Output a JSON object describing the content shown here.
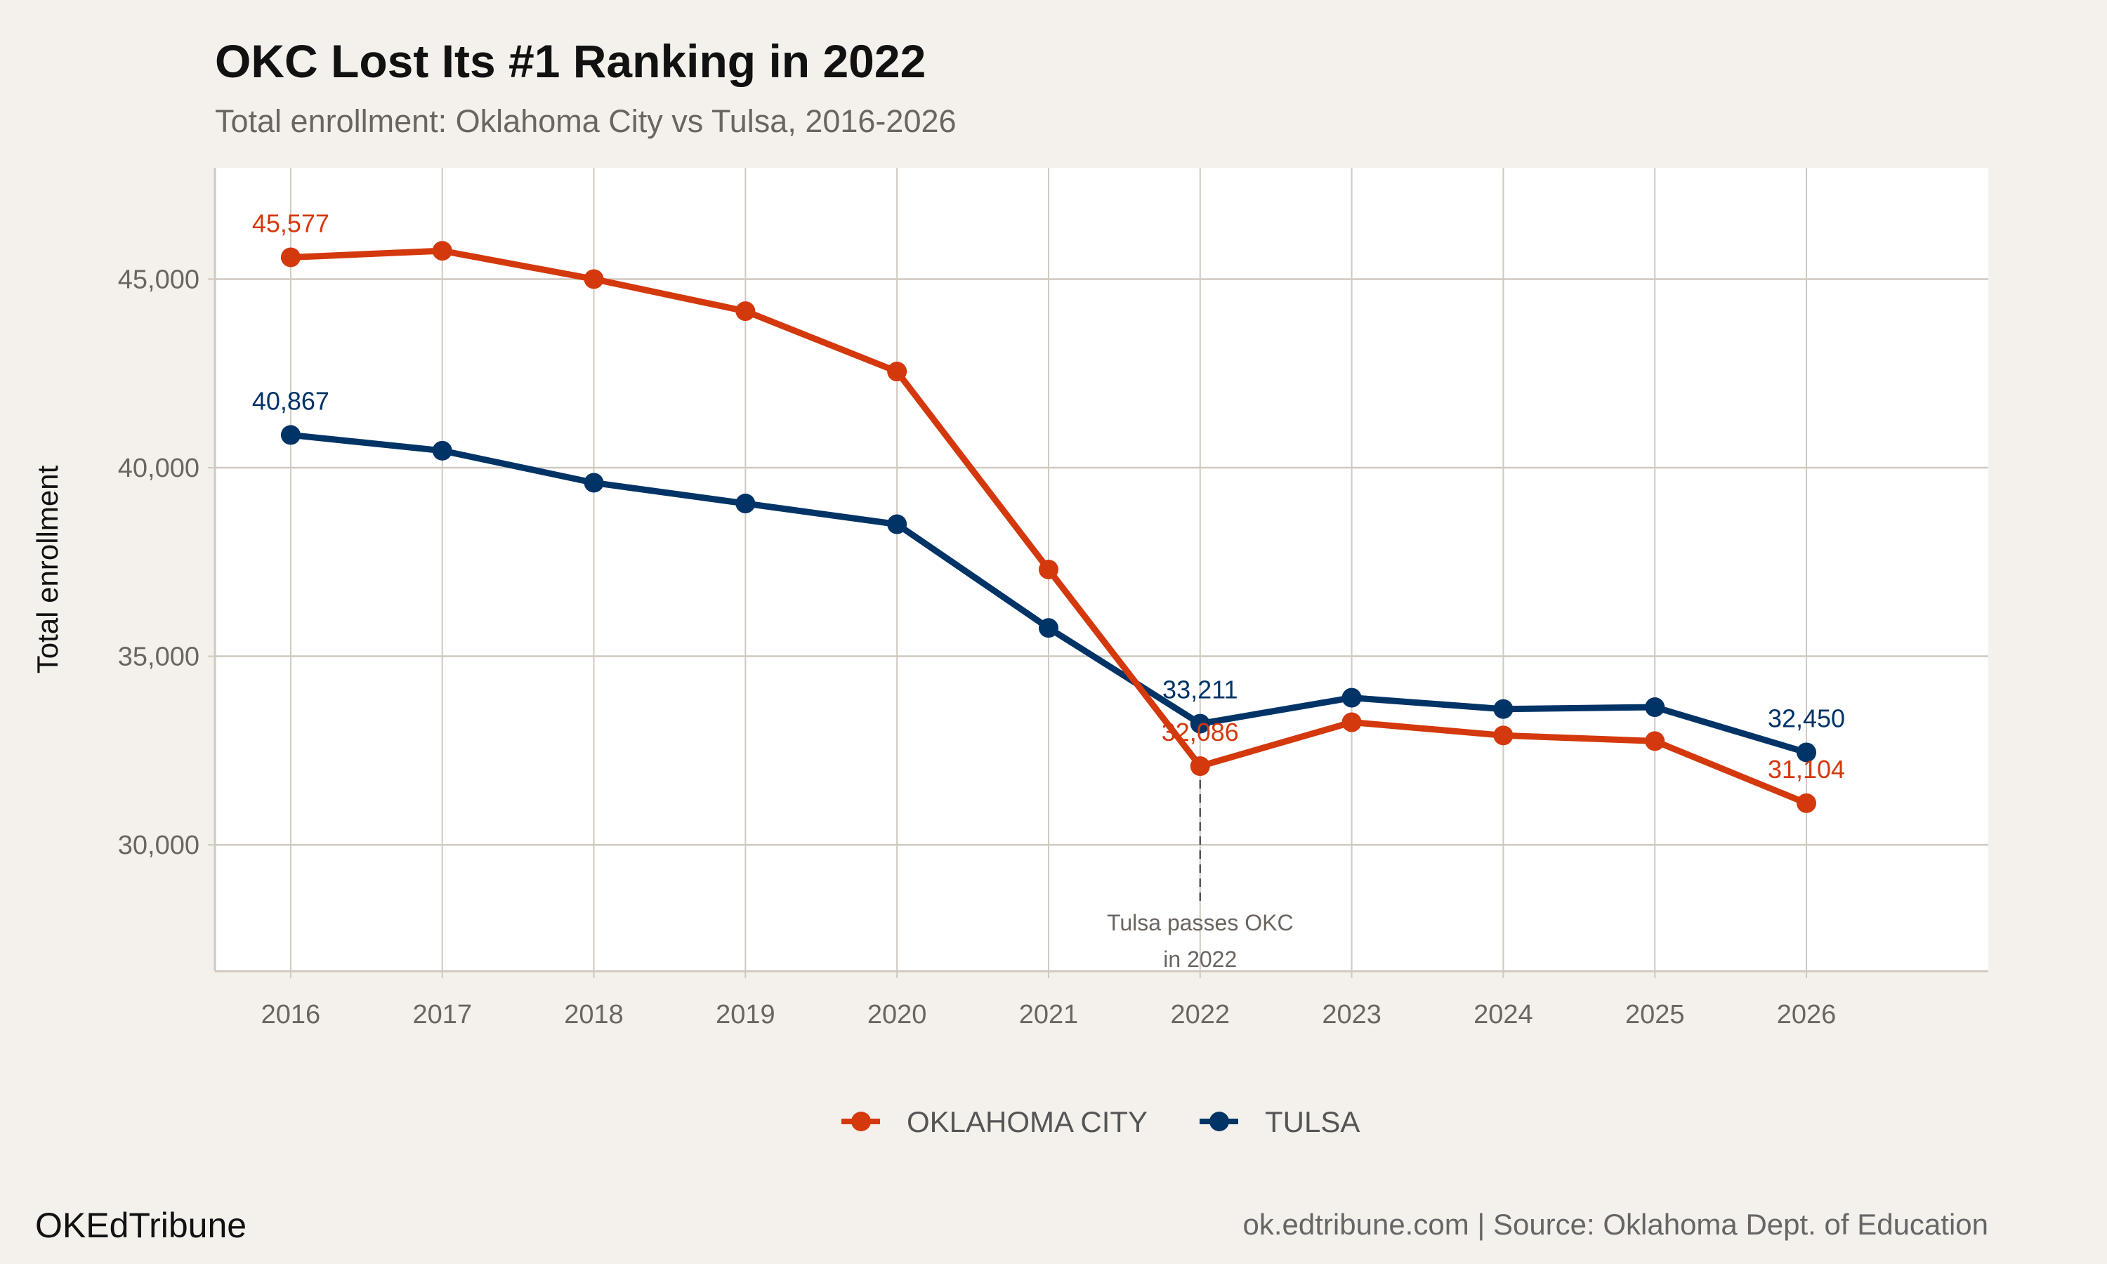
{
  "chart_data": {
    "type": "line",
    "title": "OKC Lost Its #1 Ranking in 2022",
    "subtitle": "Total enrollment: Oklahoma City vs Tulsa, 2016-2026",
    "xlabel": "",
    "ylabel": "Total enrollment",
    "x": [
      2016,
      2017,
      2018,
      2019,
      2020,
      2021,
      2022,
      2023,
      2024,
      2025,
      2026
    ],
    "x_tick_labels": [
      "2016",
      "2017",
      "2018",
      "2019",
      "2020",
      "2021",
      "2022",
      "2023",
      "2024",
      "2025",
      "2026"
    ],
    "y_ticks": [
      30000,
      35000,
      40000,
      45000
    ],
    "y_tick_labels": [
      "30,000",
      "35,000",
      "40,000",
      "45,000"
    ],
    "xlim": [
      2015.5,
      2027.2
    ],
    "ylim": [
      26650,
      47950
    ],
    "grid": true,
    "legend_position": "bottom",
    "series": [
      {
        "name": "OKLAHOMA CITY",
        "color": "#d4380d",
        "values": [
          45577,
          45750,
          45000,
          44150,
          42550,
          37300,
          32086,
          33250,
          32900,
          32750,
          31104
        ],
        "data_labels": [
          {
            "x": 2016,
            "text": "45,577"
          },
          {
            "x": 2022,
            "text": "32,086"
          },
          {
            "x": 2026,
            "text": "31,104"
          }
        ]
      },
      {
        "name": "TULSA",
        "color": "#003366",
        "values": [
          40867,
          40450,
          39600,
          39050,
          38500,
          35750,
          33211,
          33900,
          33600,
          33650,
          32450
        ],
        "data_labels": [
          {
            "x": 2016,
            "text": "40,867"
          },
          {
            "x": 2022,
            "text": "33,211"
          },
          {
            "x": 2026,
            "text": "32,450"
          }
        ]
      }
    ],
    "annotation": {
      "x": 2022,
      "line1": "Tulsa passes OKC",
      "line2": "in 2022"
    }
  },
  "footer": {
    "brand": "OKEdTribune",
    "source": "ok.edtribune.com | Source: Oklahoma Dept. of Education"
  },
  "colors": {
    "background": "#f4f1ec",
    "panel": "#ffffff",
    "grid": "#cfc9c0"
  }
}
